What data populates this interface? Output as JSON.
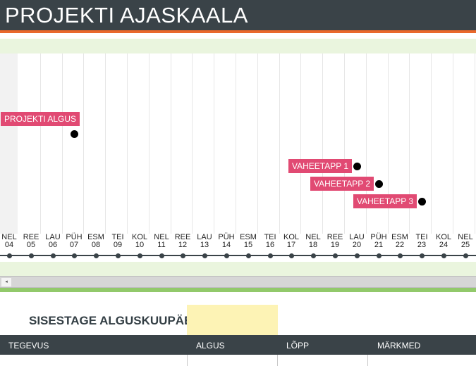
{
  "title": "PROJEKTI AJASKAALA",
  "days": [
    {
      "weekday": "NEL",
      "date": "04"
    },
    {
      "weekday": "REE",
      "date": "05"
    },
    {
      "weekday": "LAU",
      "date": "06"
    },
    {
      "weekday": "PÜH",
      "date": "07"
    },
    {
      "weekday": "ESM",
      "date": "08"
    },
    {
      "weekday": "TEI",
      "date": "09"
    },
    {
      "weekday": "KOL",
      "date": "10"
    },
    {
      "weekday": "NEL",
      "date": "11"
    },
    {
      "weekday": "REE",
      "date": "12"
    },
    {
      "weekday": "LAU",
      "date": "13"
    },
    {
      "weekday": "PÜH",
      "date": "14"
    },
    {
      "weekday": "ESM",
      "date": "15"
    },
    {
      "weekday": "TEI",
      "date": "16"
    },
    {
      "weekday": "KOL",
      "date": "17"
    },
    {
      "weekday": "NEL",
      "date": "18"
    },
    {
      "weekday": "REE",
      "date": "19"
    },
    {
      "weekday": "LAU",
      "date": "20"
    },
    {
      "weekday": "PÜH",
      "date": "21"
    },
    {
      "weekday": "ESM",
      "date": "22"
    },
    {
      "weekday": "TEI",
      "date": "23"
    },
    {
      "weekday": "KOL",
      "date": "24"
    },
    {
      "weekday": "NEL",
      "date": "25"
    }
  ],
  "milestones": [
    {
      "label": "PROJEKTI ALGUS",
      "day_index": 3
    },
    {
      "label": "VAHEETAPP 1",
      "day_index": 16
    },
    {
      "label": "VAHEETAPP 2",
      "day_index": 17
    },
    {
      "label": "VAHEETAPP 3",
      "day_index": 19
    }
  ],
  "colors": {
    "header": "#3a4348",
    "accent": "#e9682b",
    "milestone": "#e14a73",
    "band": "#eaf5de",
    "input": "#fdf3b5"
  },
  "start_date": {
    "label": "SISESTAGE ALGUSKUUPÄEV:",
    "value": ""
  },
  "table": {
    "columns": [
      "TEGEVUS",
      "ALGUS",
      "LÕPP",
      "MÄRKMED"
    ]
  }
}
